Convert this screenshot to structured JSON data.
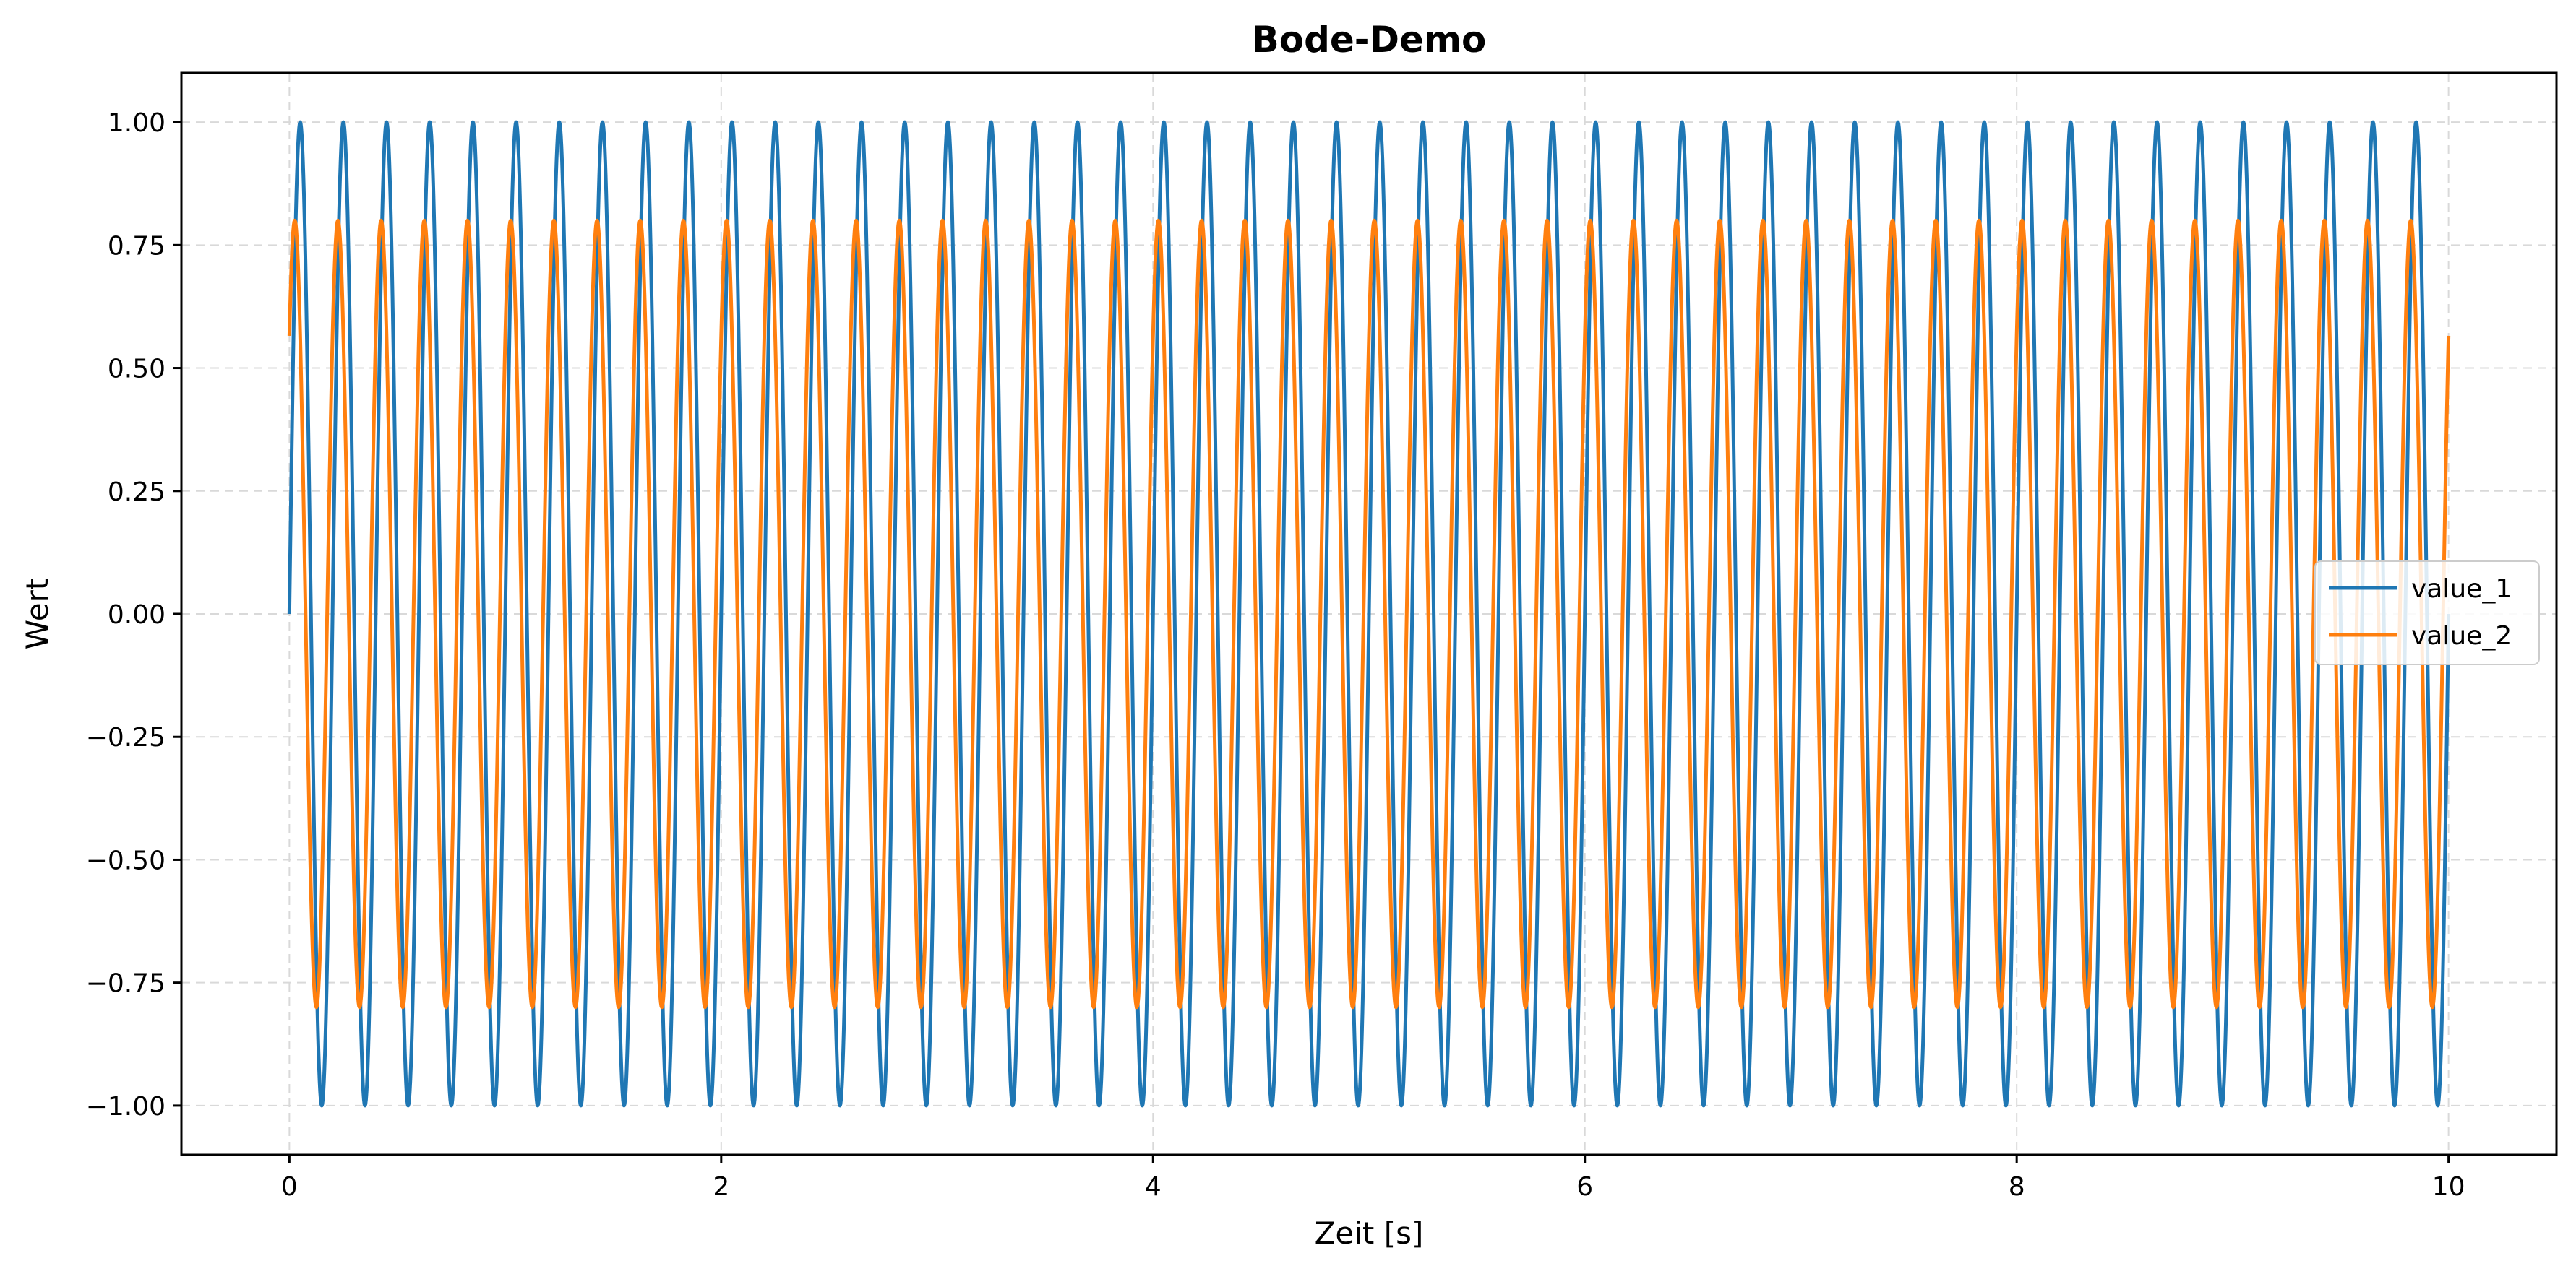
{
  "chart_data": {
    "type": "line",
    "title": "Bode-Demo",
    "xlabel": "Zeit [s]",
    "ylabel": "Wert",
    "xlim": [
      -0.5,
      10.5
    ],
    "ylim": [
      -1.1,
      1.1
    ],
    "x_range": [
      0,
      10
    ],
    "samples": 4000,
    "xticks": [
      0,
      2,
      4,
      6,
      8,
      10
    ],
    "xtick_labels": [
      "0",
      "2",
      "4",
      "6",
      "8",
      "10"
    ],
    "yticks": [
      -1.0,
      -0.75,
      -0.5,
      -0.25,
      0.0,
      0.25,
      0.5,
      0.75,
      1.0
    ],
    "ytick_labels": [
      "−1.00",
      "−0.75",
      "−0.50",
      "−0.25",
      "0.00",
      "0.25",
      "0.50",
      "0.75",
      "1.00"
    ],
    "grid": true,
    "legend_position": "center-right",
    "series": [
      {
        "name": "value_1",
        "function": "sin",
        "amplitude": 1.0,
        "frequency_hz": 5,
        "phase_rad": 0.0,
        "color": "#1f77b4"
      },
      {
        "name": "value_2",
        "function": "sin",
        "amplitude": 0.8,
        "frequency_hz": 5,
        "phase_rad": 0.785,
        "color": "#ff7f0e"
      }
    ]
  }
}
